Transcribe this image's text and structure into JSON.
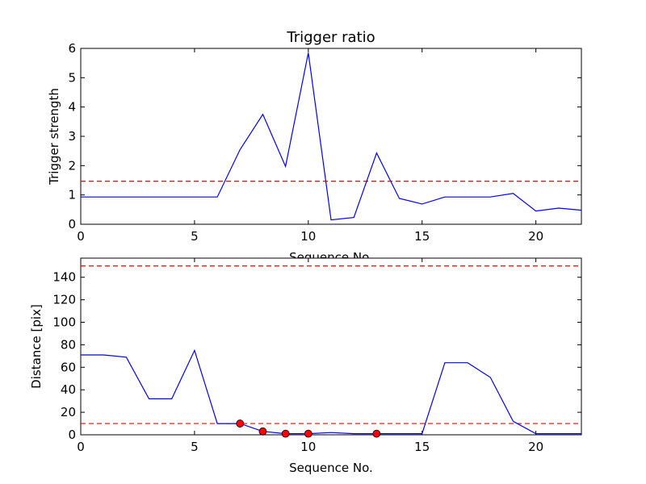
{
  "chart_data": [
    {
      "type": "line",
      "title": "Trigger ratio",
      "xlabel": "Sequence No.",
      "ylabel": "Trigger strength",
      "xlim": [
        0,
        22
      ],
      "ylim": [
        0,
        6
      ],
      "xticks": [
        0,
        5,
        10,
        15,
        20
      ],
      "yticks": [
        0,
        1,
        2,
        3,
        4,
        5,
        6
      ],
      "grid": false,
      "line_color": "#0000ff",
      "threshold_color": "#ff0000",
      "series": [
        {
          "x": [
            0,
            1,
            2,
            3,
            4,
            5,
            6,
            7,
            8,
            9,
            10,
            11,
            12,
            13,
            14,
            15,
            16,
            17,
            18,
            19,
            20,
            21,
            22
          ],
          "values": [
            0.93,
            0.93,
            0.93,
            0.93,
            0.93,
            0.93,
            0.93,
            2.55,
            3.75,
            1.97,
            5.85,
            0.15,
            0.23,
            2.43,
            0.88,
            0.69,
            0.93,
            0.93,
            0.93,
            1.05,
            0.45,
            0.55,
            0.48
          ]
        }
      ],
      "thresholds": [
        1.47
      ]
    },
    {
      "type": "line",
      "title": "",
      "xlabel": "Sequence No.",
      "ylabel": "Distance [pix]",
      "xlim": [
        0,
        22
      ],
      "ylim": [
        0,
        157
      ],
      "xticks": [
        0,
        5,
        10,
        15,
        20
      ],
      "yticks": [
        0,
        20,
        40,
        60,
        80,
        100,
        120,
        140
      ],
      "grid": false,
      "line_color": "#0000ff",
      "threshold_color": "#ff0000",
      "marker_color": "#ff0000",
      "series": [
        {
          "x": [
            0,
            1,
            2,
            3,
            4,
            5,
            6,
            7,
            8,
            9,
            10,
            11,
            12,
            13,
            14,
            15,
            16,
            17,
            18,
            19,
            20,
            21,
            22
          ],
          "values": [
            71,
            71,
            69,
            32,
            32,
            75,
            10,
            10,
            3,
            1,
            1,
            2,
            1,
            1,
            1,
            1,
            64,
            64,
            51,
            12,
            1,
            1,
            1
          ]
        }
      ],
      "markers": [
        {
          "x": 7,
          "y": 10
        },
        {
          "x": 8,
          "y": 3
        },
        {
          "x": 9,
          "y": 1
        },
        {
          "x": 10,
          "y": 1
        },
        {
          "x": 13,
          "y": 1
        }
      ],
      "thresholds": [
        150,
        10
      ]
    }
  ]
}
